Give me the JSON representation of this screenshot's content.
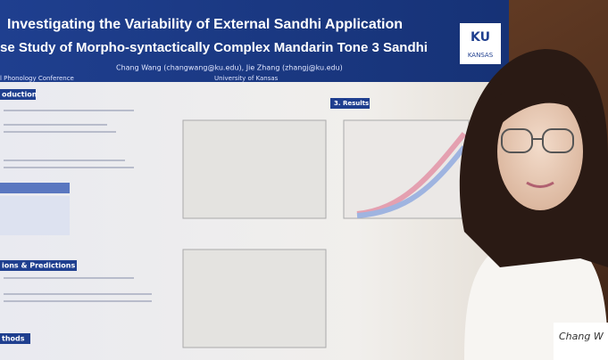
{
  "poster": {
    "title_line1": "Investigating the Variability of External Sandhi Application",
    "title_line2": "se Study of Morpho-syntactically Complex Mandarin Tone 3 Sandhi",
    "authors": "Chang Wang (changwang@ku.edu), Jie Zhang (zhangj@ku.edu)",
    "conference": "l Phonology Conference",
    "affiliation": "University of Kansas",
    "logo_text": "KU",
    "logo_subtext": "KANSAS",
    "sections": [
      "oduction",
      "ions & Predictions",
      "thods"
    ],
    "results_heading": "3. Results"
  },
  "name_tag": "Chang W"
}
